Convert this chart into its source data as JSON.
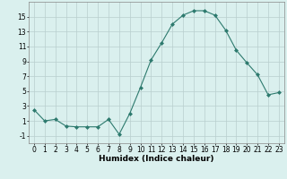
{
  "x": [
    0,
    1,
    2,
    3,
    4,
    5,
    6,
    7,
    8,
    9,
    10,
    11,
    12,
    13,
    14,
    15,
    16,
    17,
    18,
    19,
    20,
    21,
    22,
    23
  ],
  "y": [
    2.5,
    1.0,
    1.2,
    0.3,
    0.2,
    0.2,
    0.2,
    1.2,
    -0.8,
    2.0,
    5.5,
    9.2,
    11.5,
    14.0,
    15.2,
    15.8,
    15.8,
    15.2,
    13.2,
    10.5,
    8.8,
    7.2,
    4.5,
    4.8
  ],
  "line_color": "#2d7a6e",
  "marker": "D",
  "marker_size": 2,
  "bg_color": "#daf0ee",
  "grid_color": "#b8cece",
  "xlabel": "Humidex (Indice chaleur)",
  "xlim": [
    -0.5,
    23.5
  ],
  "ylim": [
    -2.0,
    17.0
  ],
  "yticks": [
    -1,
    1,
    3,
    5,
    7,
    9,
    11,
    13,
    15
  ],
  "xticks": [
    0,
    1,
    2,
    3,
    4,
    5,
    6,
    7,
    8,
    9,
    10,
    11,
    12,
    13,
    14,
    15,
    16,
    17,
    18,
    19,
    20,
    21,
    22,
    23
  ],
  "label_fontsize": 6.5,
  "tick_fontsize": 5.5
}
